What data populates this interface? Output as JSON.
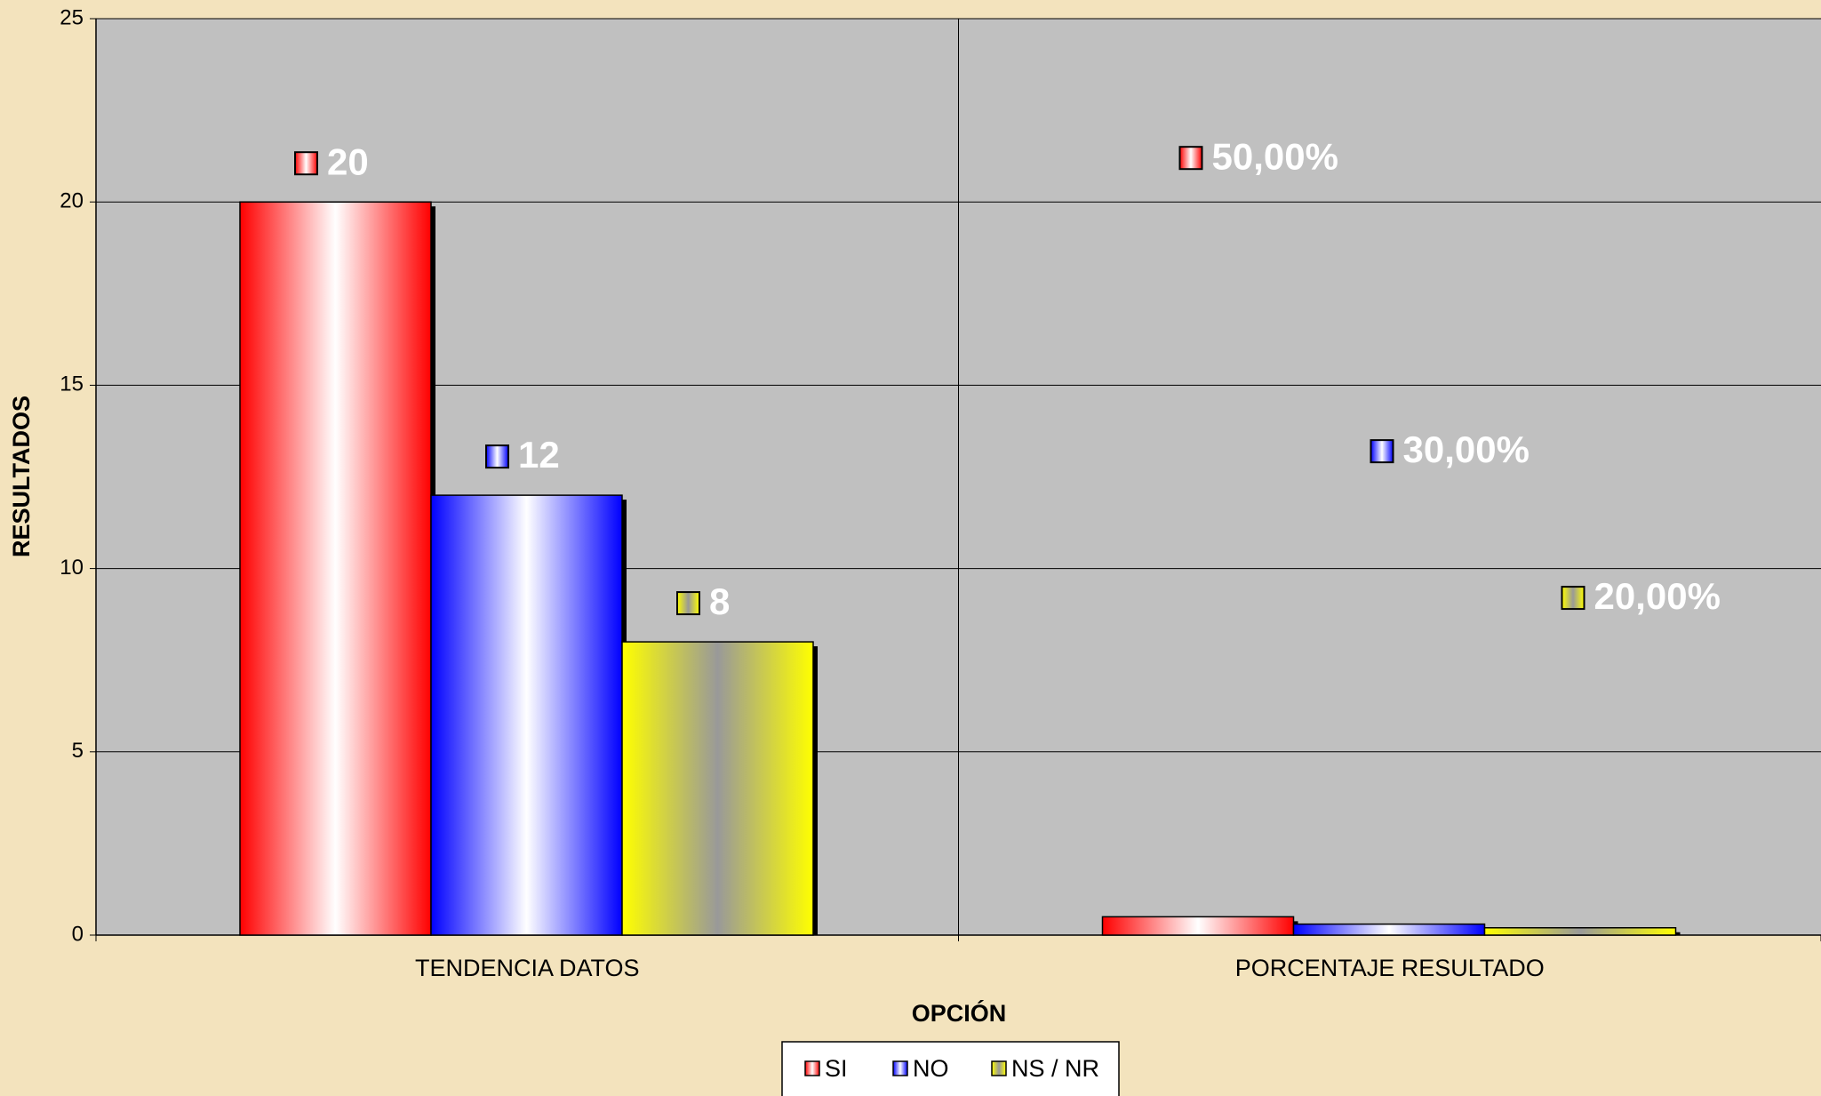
{
  "chart_data": {
    "type": "bar",
    "categories": [
      "TENDENCIA DATOS",
      "PORCENTAJE RESULTADO"
    ],
    "series": [
      {
        "name": "SI",
        "color": "#ff0000",
        "values": [
          20,
          0.5
        ],
        "value_labels": [
          "20",
          "50,00%"
        ]
      },
      {
        "name": "NO",
        "color": "#0000ff",
        "values": [
          12,
          0.3
        ],
        "value_labels": [
          "12",
          "30,00%"
        ]
      },
      {
        "name": "NS / NR",
        "color": "#ffff00",
        "values": [
          8,
          0.2
        ],
        "value_labels": [
          "8",
          "20,00%"
        ]
      }
    ],
    "ylim": [
      0,
      25
    ],
    "yticks": [
      0,
      5,
      10,
      15,
      20,
      25
    ],
    "grid": true,
    "y_label": "RESULTADOS",
    "x_label": "OPCIÓN",
    "legend": "bottom"
  }
}
